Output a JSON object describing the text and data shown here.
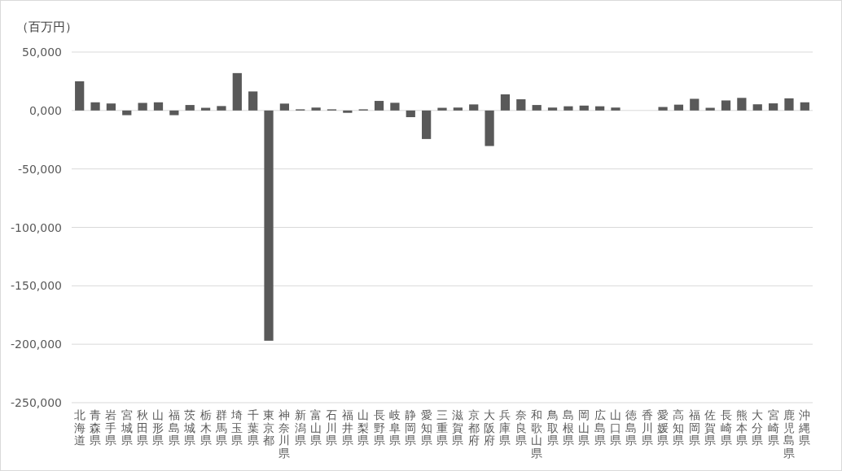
{
  "chart_data": {
    "type": "bar",
    "ylabel": "（百万円）",
    "categories": [
      "北海道",
      "青森県",
      "岩手県",
      "宮城県",
      "秋田県",
      "山形県",
      "福島県",
      "茨城県",
      "栃木県",
      "群馬県",
      "埼玉県",
      "千葉県",
      "東京都",
      "神奈川県",
      "新潟県",
      "富山県",
      "石川県",
      "福井県",
      "山梨県",
      "長野県",
      "岐阜県",
      "静岡県",
      "愛知県",
      "三重県",
      "滋賀県",
      "京都府",
      "大阪府",
      "兵庫県",
      "奈良県",
      "和歌山県",
      "鳥取県",
      "島根県",
      "岡山県",
      "広島県",
      "山口県",
      "徳島県",
      "香川県",
      "愛媛県",
      "高知県",
      "福岡県",
      "佐賀県",
      "長崎県",
      "熊本県",
      "大分県",
      "宮崎県",
      "鹿児島県",
      "沖縄県"
    ],
    "values": [
      25000,
      7000,
      6000,
      -4000,
      6500,
      7000,
      -4000,
      4700,
      2300,
      3800,
      32000,
      16300,
      -197000,
      5900,
      1000,
      2500,
      1000,
      -2000,
      1000,
      8200,
      6600,
      -5700,
      -24400,
      2300,
      2500,
      5200,
      -30400,
      13800,
      9600,
      4700,
      2500,
      3600,
      4200,
      3600,
      2500,
      0,
      0,
      3000,
      5000,
      10000,
      2300,
      8600,
      10800,
      5300,
      6100,
      10400,
      7000
    ],
    "color": "#595959",
    "ylim": [
      -250000,
      50000
    ],
    "yticks": [
      {
        "value": -250000,
        "label": "-250,000"
      },
      {
        "value": -200000,
        "label": "-200,000"
      },
      {
        "value": -150000,
        "label": "-150,000"
      },
      {
        "value": -100000,
        "label": "-100,000"
      },
      {
        "value": -50000,
        "label": "-50,000"
      },
      {
        "value": 0,
        "label": "0,000"
      },
      {
        "value": 50000,
        "label": "50,000"
      }
    ],
    "grid": "y"
  }
}
